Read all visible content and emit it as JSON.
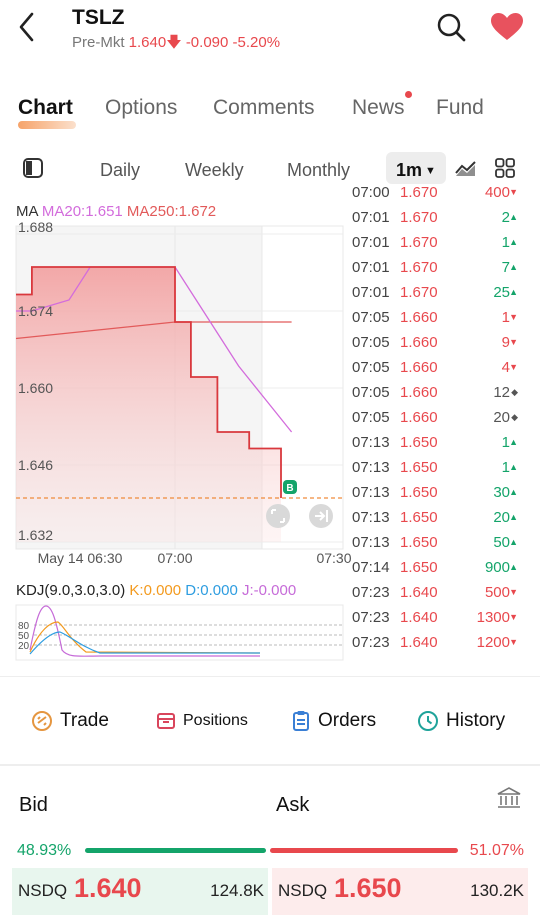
{
  "header": {
    "symbol": "TSLZ",
    "session_label": "Pre-Mkt",
    "price": "1.640",
    "change": "-0.090",
    "change_pct": "-5.20%"
  },
  "tabs": [
    {
      "label": "Chart",
      "active": true
    },
    {
      "label": "Options"
    },
    {
      "label": "Comments"
    },
    {
      "label": "News",
      "has_badge": true
    },
    {
      "label": "Fund"
    }
  ],
  "periods": {
    "items": [
      "Daily",
      "Weekly",
      "Monthly"
    ],
    "selected": "1m"
  },
  "indicators": {
    "ma_label": "MA",
    "ma20": "MA20:1.651",
    "ma250": "MA250:1.672",
    "kdj_label": "KDJ(9.0,3.0,3.0)",
    "k": "K:0.000",
    "d": "D:0.000",
    "j": "J:-0.000"
  },
  "chart_data": {
    "type": "area",
    "y_ticks": [
      "1.688",
      "1.674",
      "1.660",
      "1.646",
      "1.632"
    ],
    "ylim": [
      1.632,
      1.688
    ],
    "x_ticks": [
      "May 14 06:30",
      "07:00",
      "07:30"
    ],
    "x_minutes": [
      0,
      30,
      60
    ],
    "series": [
      {
        "x": [
          0,
          2,
          2,
          3,
          3,
          30,
          30,
          33,
          33,
          38,
          38,
          44,
          44,
          50,
          50
        ],
        "values": [
          1.677,
          1.677,
          1.677,
          1.677,
          1.682,
          1.682,
          1.672,
          1.672,
          1.662,
          1.662,
          1.652,
          1.652,
          1.649,
          1.649,
          1.64
        ]
      },
      {
        "x": [
          0,
          3,
          10,
          14,
          30,
          34,
          38,
          42,
          47,
          52
        ],
        "values": [
          1.674,
          1.674,
          1.676,
          1.682,
          1.682,
          1.676,
          1.67,
          1.664,
          1.658,
          1.652
        ]
      },
      {
        "x": [
          0,
          10,
          20,
          30,
          40,
          50,
          52
        ],
        "values": [
          1.669,
          1.67,
          1.671,
          1.672,
          1.672,
          1.672,
          1.672
        ]
      }
    ],
    "last_price": 1.64,
    "marker": "B",
    "colors": {
      "price": "#d9383d",
      "ma20": "#d36cdc",
      "ma250": "#e25a5a",
      "last_price_line": "#f08c3c"
    }
  },
  "kdj_chart": {
    "y_ticks": [
      "80",
      "50",
      "20"
    ]
  },
  "ticks": [
    {
      "time": "07:00",
      "price": "1.670",
      "vol": "400",
      "dir": "down"
    },
    {
      "time": "07:01",
      "price": "1.670",
      "vol": "2",
      "dir": "up"
    },
    {
      "time": "07:01",
      "price": "1.670",
      "vol": "1",
      "dir": "up"
    },
    {
      "time": "07:01",
      "price": "1.670",
      "vol": "7",
      "dir": "up"
    },
    {
      "time": "07:01",
      "price": "1.670",
      "vol": "25",
      "dir": "up"
    },
    {
      "time": "07:05",
      "price": "1.660",
      "vol": "1",
      "dir": "down"
    },
    {
      "time": "07:05",
      "price": "1.660",
      "vol": "9",
      "dir": "down"
    },
    {
      "time": "07:05",
      "price": "1.660",
      "vol": "4",
      "dir": "down"
    },
    {
      "time": "07:05",
      "price": "1.660",
      "vol": "12",
      "dir": "neutral"
    },
    {
      "time": "07:05",
      "price": "1.660",
      "vol": "20",
      "dir": "neutral"
    },
    {
      "time": "07:13",
      "price": "1.650",
      "vol": "1",
      "dir": "up"
    },
    {
      "time": "07:13",
      "price": "1.650",
      "vol": "1",
      "dir": "up"
    },
    {
      "time": "07:13",
      "price": "1.650",
      "vol": "30",
      "dir": "up"
    },
    {
      "time": "07:13",
      "price": "1.650",
      "vol": "20",
      "dir": "up"
    },
    {
      "time": "07:13",
      "price": "1.650",
      "vol": "50",
      "dir": "up"
    },
    {
      "time": "07:14",
      "price": "1.650",
      "vol": "900",
      "dir": "up"
    },
    {
      "time": "07:23",
      "price": "1.640",
      "vol": "500",
      "dir": "down"
    },
    {
      "time": "07:23",
      "price": "1.640",
      "vol": "1300",
      "dir": "down"
    },
    {
      "time": "07:23",
      "price": "1.640",
      "vol": "1200",
      "dir": "down"
    }
  ],
  "actions": {
    "trade": "Trade",
    "positions": "Positions",
    "orders": "Orders",
    "history": "History"
  },
  "bidask": {
    "bid_label": "Bid",
    "ask_label": "Ask",
    "bid_pct": "48.93%",
    "ask_pct": "51.07%",
    "bid_fraction": 0.4893,
    "bid_exchange": "NSDQ",
    "bid_price": "1.640",
    "bid_size": "124.8K",
    "ask_exchange": "NSDQ",
    "ask_price": "1.650",
    "ask_size": "130.2K"
  },
  "colors": {
    "up": "#14a46a",
    "down": "#e8484d",
    "accent": "#f6a36a"
  }
}
